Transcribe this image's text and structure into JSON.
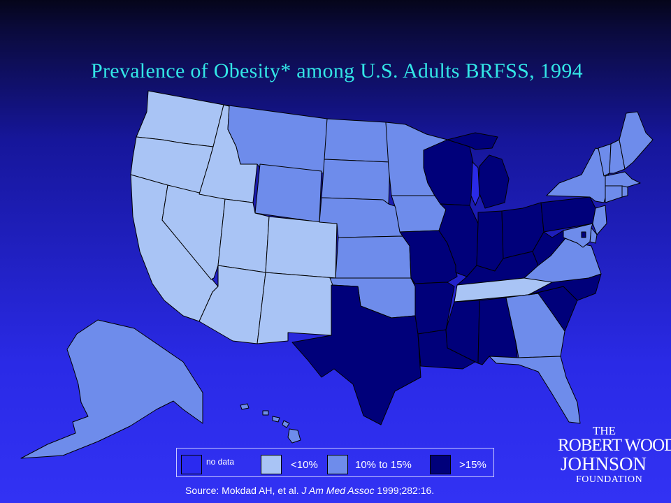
{
  "title": "Prevalence of Obesity* among U.S. Adults BRFSS, 1994",
  "legend": {
    "items": [
      {
        "label": "no data",
        "color": "#2a2af0"
      },
      {
        "label": "<10%",
        "color": "#a9c4f5"
      },
      {
        "label": "10% to 15%",
        "color": "#6e8ceb"
      },
      {
        "label": ">15%",
        "color": "#00007a"
      }
    ]
  },
  "colors": {
    "lt10": "#a9c4f5",
    "mid": "#6e8ceb",
    "gt15": "#00007a",
    "border": "#000000"
  },
  "source": {
    "prefix": "Source: Mokdad AH, et al. ",
    "journal": "J Am Med Assoc",
    "suffix": " 1999;282:16."
  },
  "logo": {
    "line1": "THE",
    "line2": "ROBERT WOOD",
    "line3": "JOHNSON",
    "line4": "FOUNDATION"
  },
  "states": [
    {
      "id": "WA",
      "category": "<10%"
    },
    {
      "id": "OR",
      "category": "<10%"
    },
    {
      "id": "CA",
      "category": "<10%"
    },
    {
      "id": "NV",
      "category": "<10%"
    },
    {
      "id": "ID",
      "category": "<10%"
    },
    {
      "id": "MT",
      "category": "10% to 15%"
    },
    {
      "id": "WY",
      "category": "10% to 15%"
    },
    {
      "id": "UT",
      "category": "<10%"
    },
    {
      "id": "AZ",
      "category": "<10%"
    },
    {
      "id": "CO",
      "category": "<10%"
    },
    {
      "id": "NM",
      "category": "<10%"
    },
    {
      "id": "ND",
      "category": "10% to 15%"
    },
    {
      "id": "SD",
      "category": "10% to 15%"
    },
    {
      "id": "NE",
      "category": "10% to 15%"
    },
    {
      "id": "KS",
      "category": "10% to 15%"
    },
    {
      "id": "OK",
      "category": "10% to 15%"
    },
    {
      "id": "TX",
      "category": ">15%"
    },
    {
      "id": "MN",
      "category": "10% to 15%"
    },
    {
      "id": "IA",
      "category": "10% to 15%"
    },
    {
      "id": "MO",
      "category": ">15%"
    },
    {
      "id": "AR",
      "category": ">15%"
    },
    {
      "id": "LA",
      "category": ">15%"
    },
    {
      "id": "WI",
      "category": ">15%"
    },
    {
      "id": "IL",
      "category": ">15%"
    },
    {
      "id": "MI",
      "category": ">15%"
    },
    {
      "id": "IN",
      "category": ">15%"
    },
    {
      "id": "OH",
      "category": ">15%"
    },
    {
      "id": "KY",
      "category": ">15%"
    },
    {
      "id": "TN",
      "category": "<10%"
    },
    {
      "id": "MS",
      "category": ">15%"
    },
    {
      "id": "AL",
      "category": ">15%"
    },
    {
      "id": "GA",
      "category": "10% to 15%"
    },
    {
      "id": "FL",
      "category": "10% to 15%"
    },
    {
      "id": "SC",
      "category": ">15%"
    },
    {
      "id": "NC",
      "category": ">15%"
    },
    {
      "id": "VA",
      "category": "10% to 15%"
    },
    {
      "id": "WV",
      "category": ">15%"
    },
    {
      "id": "PA",
      "category": ">15%"
    },
    {
      "id": "NY",
      "category": "10% to 15%"
    },
    {
      "id": "NJ",
      "category": "10% to 15%"
    },
    {
      "id": "DE",
      "category": "10% to 15%"
    },
    {
      "id": "MD",
      "category": "10% to 15%"
    },
    {
      "id": "DC",
      "category": ">15%"
    },
    {
      "id": "VT",
      "category": "10% to 15%"
    },
    {
      "id": "NH",
      "category": "10% to 15%"
    },
    {
      "id": "ME",
      "category": "10% to 15%"
    },
    {
      "id": "MA",
      "category": "10% to 15%"
    },
    {
      "id": "CT",
      "category": "10% to 15%"
    },
    {
      "id": "RI",
      "category": "10% to 15%"
    },
    {
      "id": "AK",
      "category": "10% to 15%"
    },
    {
      "id": "HI",
      "category": "10% to 15%"
    }
  ]
}
